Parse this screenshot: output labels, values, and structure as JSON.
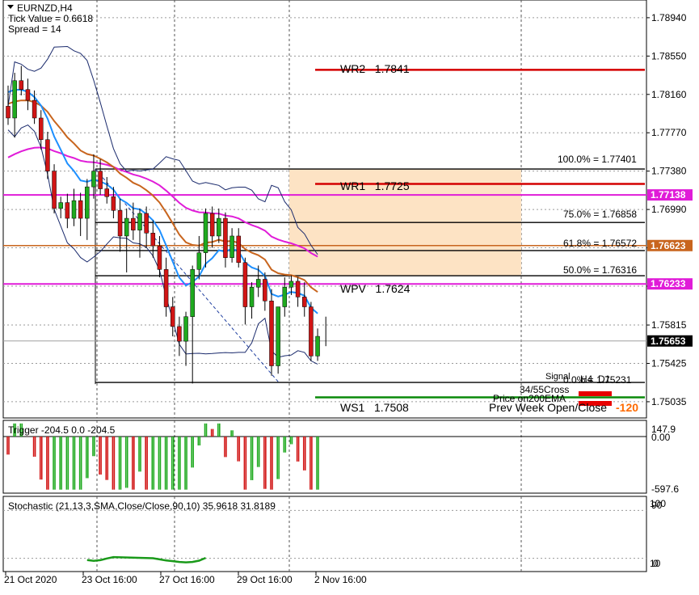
{
  "window": {
    "symbol": "EURNZD,H4",
    "tick_value": "Tick Value = 0.6618",
    "spread": "Spread = 14"
  },
  "colors": {
    "bull": "#1faa1f",
    "bear": "#d11515",
    "wick": "#000000",
    "wr": "#d40000",
    "ws": "#0a8a0a",
    "wpv": "#e01cd8",
    "fib_zone": "#fde3c4",
    "ema_blue": "#1e90ff",
    "ema_brown": "#c8651e",
    "ema_magenta": "#e01cd8",
    "tag_blue": "#1f4fd8",
    "prev_week": "#ff6a00",
    "price_tag_bg": "#000000"
  },
  "price_axis": {
    "ticks": [
      "1.78940",
      "1.78550",
      "1.78160",
      "1.77770",
      "1.77380",
      "1.76990",
      "1.76600",
      "1.76210",
      "1.75815",
      "1.75425",
      "1.75035"
    ],
    "tags": [
      {
        "label": "1.77138",
        "price": 1.77138,
        "color": "#e01cd8"
      },
      {
        "label": "1.76623",
        "price": 1.76623,
        "color": "#c8651e"
      },
      {
        "label": "1.76233",
        "price": 1.76233,
        "color": "#e01cd8"
      },
      {
        "label": "1.75653",
        "price": 1.75653,
        "color": "#000000"
      }
    ]
  },
  "time_axis": {
    "labels": [
      "21 Oct 2020",
      "23 Oct 16:00",
      "27 Oct 16:00",
      "29 Oct 16:00",
      "2 Nov 16:00"
    ]
  },
  "levels": {
    "wr2": {
      "label": "WR2   1.7841",
      "price": 1.7841
    },
    "wr1": {
      "label": "WR1   1.7725",
      "price": 1.7725
    },
    "wpv": {
      "label": "WPV   1.7624",
      "price": 1.7624
    },
    "ws1": {
      "label": "WS1   1.7508",
      "price": 1.7508
    }
  },
  "fib": [
    {
      "label": "100.0% = 1.77401",
      "price": 1.77401
    },
    {
      "label": "75.0% = 1.76858",
      "price": 1.76858
    },
    {
      "label": "61.8% = 1.76572",
      "price": 1.76572
    },
    {
      "label": "50.0% = 1.76316",
      "price": 1.76316
    },
    {
      "label": "0.0% = 1.75231",
      "price": 1.75231
    }
  ],
  "signals": {
    "signal_label": "Signal",
    "h4_label": "H4",
    "d1_label": "D1",
    "cross_label": "34/55Cross",
    "ema_label": "Price on200EMA",
    "prev_week_label": "Prev Week Open/Close",
    "prev_week_value": "-120"
  },
  "trigger": {
    "title": "Trigger -204.5 0.0 -204.5",
    "scale_top": "147.9",
    "scale_zero": "0.00",
    "scale_bottom": "-597.6"
  },
  "stochastic": {
    "title": "Stochastic (21,13,3,SMA,Close/Close,90,10) 35.9618 31.8189",
    "scale_top": "100",
    "scale_90": "90",
    "scale_10": "10",
    "scale_bottom": "0"
  },
  "chart_data": {
    "type": "candlestick",
    "symbol": "EURNZD",
    "timeframe": "H4",
    "title": "EURNZD,H4",
    "ylim": [
      1.7487,
      1.7912
    ],
    "x_labels": [
      "21 Oct 2020",
      "23 Oct 16:00",
      "27 Oct 16:00",
      "29 Oct 16:00",
      "2 Nov 16:00"
    ],
    "candles": [
      [
        1.7804,
        1.7825,
        1.7785,
        1.7792
      ],
      [
        1.7792,
        1.7838,
        1.7772,
        1.783
      ],
      [
        1.783,
        1.7845,
        1.7815,
        1.7821
      ],
      [
        1.7821,
        1.7832,
        1.78,
        1.781
      ],
      [
        1.781,
        1.782,
        1.7786,
        1.7792
      ],
      [
        1.7792,
        1.78,
        1.776,
        1.777
      ],
      [
        1.777,
        1.7778,
        1.773,
        1.7738
      ],
      [
        1.7738,
        1.7745,
        1.7695,
        1.77
      ],
      [
        1.77,
        1.7712,
        1.769,
        1.7706
      ],
      [
        1.7706,
        1.7715,
        1.768,
        1.769
      ],
      [
        1.769,
        1.772,
        1.7682,
        1.7708
      ],
      [
        1.7708,
        1.7716,
        1.7672,
        1.769
      ],
      [
        1.769,
        1.773,
        1.7668,
        1.7722
      ],
      [
        1.7722,
        1.7755,
        1.771,
        1.7738
      ],
      [
        1.7738,
        1.775,
        1.7714,
        1.772
      ],
      [
        1.772,
        1.7732,
        1.7705,
        1.7712
      ],
      [
        1.7712,
        1.7722,
        1.769,
        1.7698
      ],
      [
        1.7698,
        1.771,
        1.7656,
        1.7672
      ],
      [
        1.7672,
        1.77,
        1.7635,
        1.769
      ],
      [
        1.769,
        1.7706,
        1.7668,
        1.7678
      ],
      [
        1.7678,
        1.77,
        1.765,
        1.7695
      ],
      [
        1.7695,
        1.7702,
        1.766,
        1.7675
      ],
      [
        1.7675,
        1.7688,
        1.765,
        1.7662
      ],
      [
        1.7662,
        1.7672,
        1.763,
        1.7638
      ],
      [
        1.7638,
        1.765,
        1.759,
        1.76
      ],
      [
        1.76,
        1.761,
        1.757,
        1.758
      ],
      [
        1.758,
        1.759,
        1.755,
        1.7565
      ],
      [
        1.7565,
        1.7595,
        1.754,
        1.759
      ],
      [
        1.759,
        1.7642,
        1.7522,
        1.7638
      ],
      [
        1.7638,
        1.7672,
        1.7628,
        1.7655
      ],
      [
        1.7655,
        1.77,
        1.764,
        1.7695
      ],
      [
        1.7695,
        1.7702,
        1.766,
        1.7672
      ],
      [
        1.7672,
        1.77,
        1.7665,
        1.769
      ],
      [
        1.769,
        1.7696,
        1.764,
        1.765
      ],
      [
        1.765,
        1.768,
        1.7645,
        1.7672
      ],
      [
        1.7672,
        1.768,
        1.764,
        1.7645
      ],
      [
        1.7645,
        1.765,
        1.7582,
        1.76
      ],
      [
        1.76,
        1.7625,
        1.7588,
        1.762
      ],
      [
        1.762,
        1.7642,
        1.761,
        1.7628
      ],
      [
        1.7628,
        1.7635,
        1.7596,
        1.7606
      ],
      [
        1.7606,
        1.7618,
        1.753,
        1.754
      ],
      [
        1.754,
        1.76,
        1.7532,
        1.76
      ],
      [
        1.76,
        1.763,
        1.759,
        1.762
      ],
      [
        1.762,
        1.7632,
        1.7612,
        1.7626
      ],
      [
        1.7626,
        1.763,
        1.76,
        1.761
      ],
      [
        1.761,
        1.7625,
        1.759,
        1.76
      ],
      [
        1.76,
        1.7605,
        1.7545,
        1.755
      ],
      [
        1.755,
        1.7578,
        1.7545,
        1.757
      ]
    ]
  }
}
